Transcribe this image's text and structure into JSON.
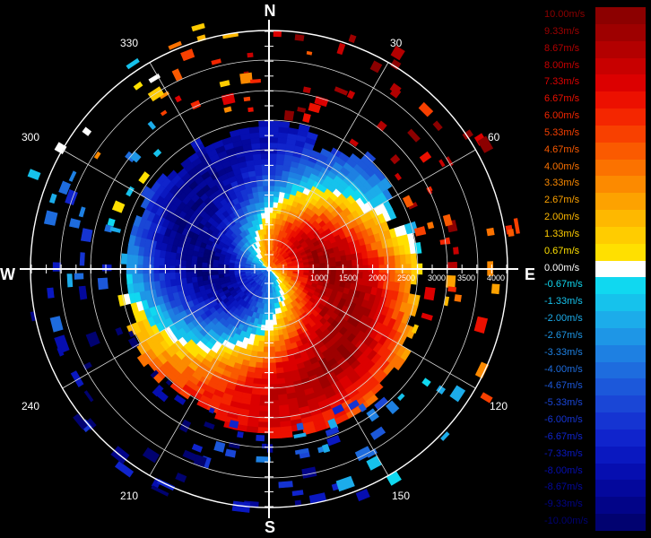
{
  "compass": {
    "north": "N",
    "east": "E",
    "south": "S",
    "west": "W"
  },
  "azimuth_labels": [
    "30",
    "60",
    "120",
    "150",
    "210",
    "240",
    "300",
    "330"
  ],
  "range_labels": [
    "1000",
    "1500",
    "2000",
    "2500",
    "3000",
    "3500",
    "4000"
  ],
  "legend": [
    {
      "label": "10.00m/s",
      "color": "#8c0000"
    },
    {
      "label": "9.33m/s",
      "color": "#9e0000"
    },
    {
      "label": "8.67m/s",
      "color": "#b30000"
    },
    {
      "label": "8.00m/s",
      "color": "#c80000"
    },
    {
      "label": "7.33m/s",
      "color": "#dc0000"
    },
    {
      "label": "6.67m/s",
      "color": "#ec1000"
    },
    {
      "label": "6.00m/s",
      "color": "#f42600"
    },
    {
      "label": "5.33m/s",
      "color": "#f84000"
    },
    {
      "label": "4.67m/s",
      "color": "#fa5a00"
    },
    {
      "label": "4.00m/s",
      "color": "#fb7200"
    },
    {
      "label": "3.33m/s",
      "color": "#fc8a00"
    },
    {
      "label": "2.67m/s",
      "color": "#fda200"
    },
    {
      "label": "2.00m/s",
      "color": "#feb800"
    },
    {
      "label": "1.33m/s",
      "color": "#ffcc00"
    },
    {
      "label": "0.67m/s",
      "color": "#ffe000"
    },
    {
      "label": "0.00m/s",
      "color": "#ffffff"
    },
    {
      "label": "-0.67m/s",
      "color": "#10d8f0"
    },
    {
      "label": "-1.33m/s",
      "color": "#16c2ec"
    },
    {
      "label": "-2.00m/s",
      "color": "#1cacea"
    },
    {
      "label": "-2.67m/s",
      "color": "#1e96e6"
    },
    {
      "label": "-3.33m/s",
      "color": "#1e80e2"
    },
    {
      "label": "-4.00m/s",
      "color": "#1e6cde"
    },
    {
      "label": "-4.67m/s",
      "color": "#1c58da"
    },
    {
      "label": "-5.33m/s",
      "color": "#1a46d6"
    },
    {
      "label": "-6.00m/s",
      "color": "#1534d2"
    },
    {
      "label": "-6.67m/s",
      "color": "#1024cc"
    },
    {
      "label": "-7.33m/s",
      "color": "#0a18c0"
    },
    {
      "label": "-8.00m/s",
      "color": "#060eb0"
    },
    {
      "label": "-8.67m/s",
      "color": "#04089c"
    },
    {
      "label": "-9.33m/s",
      "color": "#020488"
    },
    {
      "label": "-10.00m/s",
      "color": "#010270"
    }
  ]
}
